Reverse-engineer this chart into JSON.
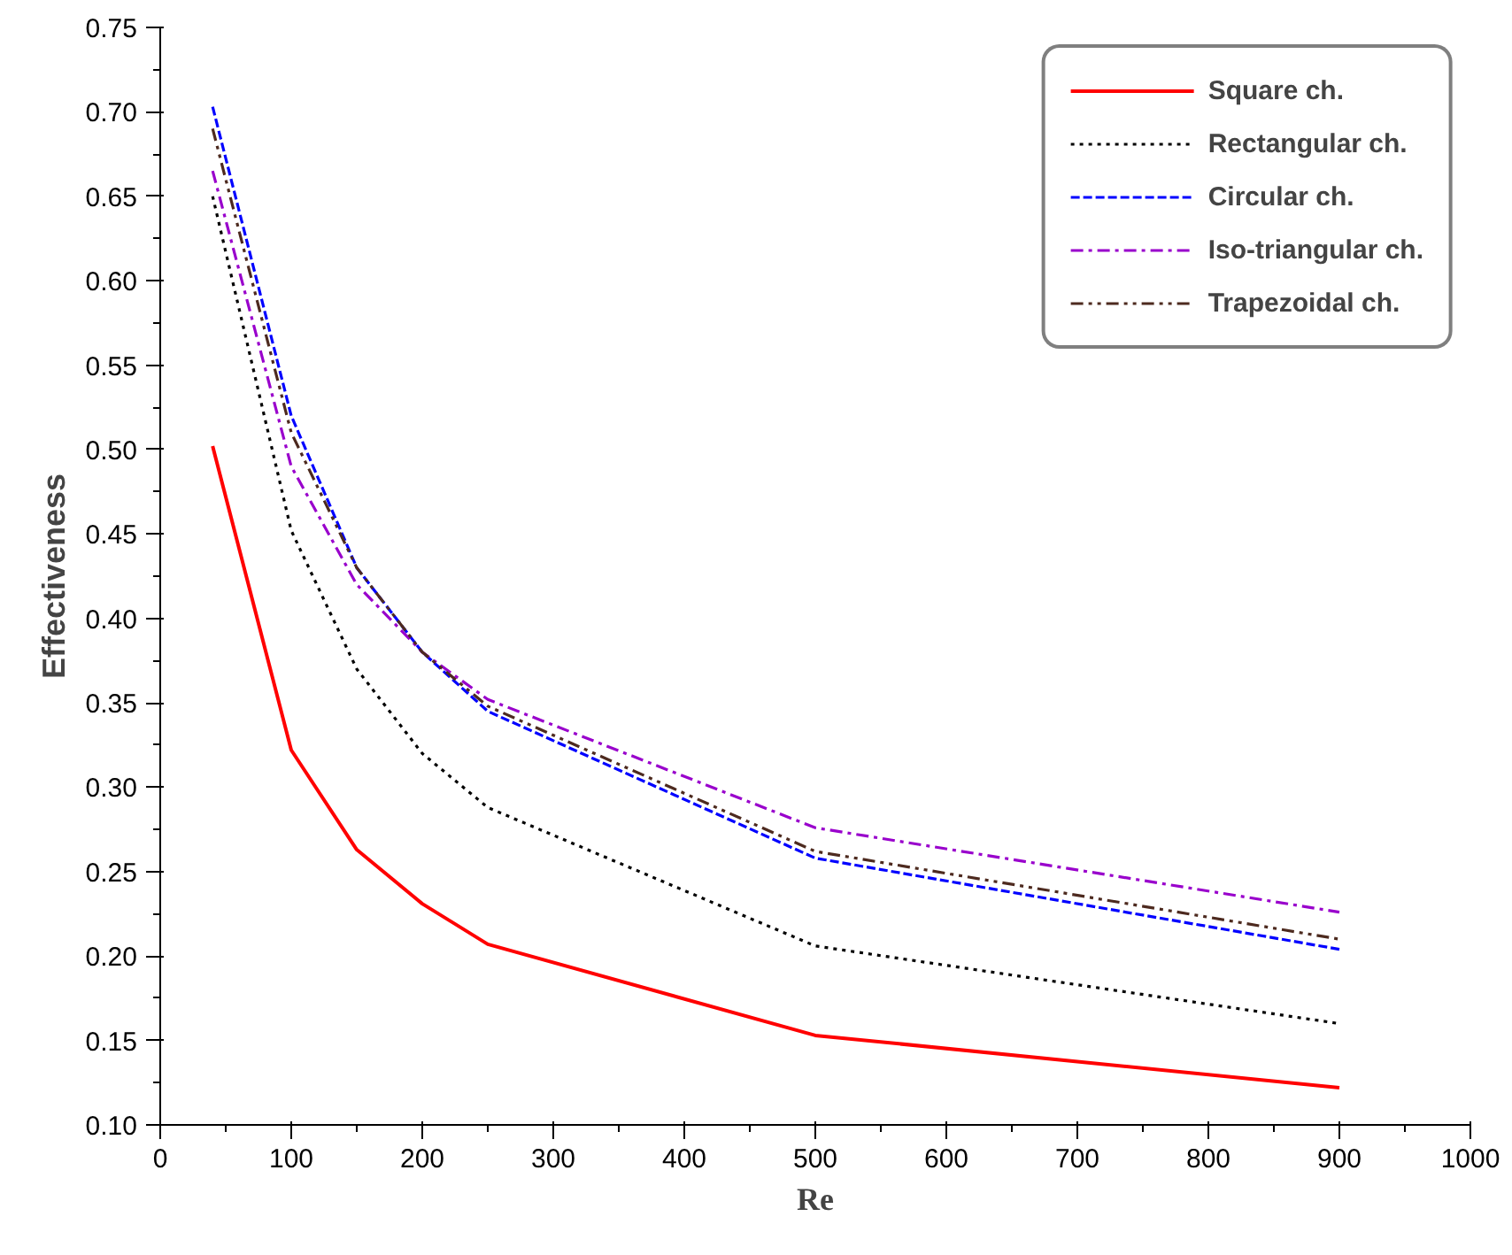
{
  "chart_data": {
    "type": "line",
    "xlabel": "Re",
    "ylabel": "Effectiveness",
    "x": [
      40,
      100,
      150,
      200,
      250,
      500,
      900
    ],
    "series": [
      {
        "name": "Square ch.",
        "color": "#ff0000",
        "line_style": "solid",
        "values": [
          0.502,
          0.322,
          0.263,
          0.231,
          0.207,
          0.153,
          0.122
        ]
      },
      {
        "name": "Rectangular ch.",
        "color": "#000000",
        "line_style": "dotted",
        "values": [
          0.65,
          0.452,
          0.37,
          0.32,
          0.288,
          0.206,
          0.16
        ]
      },
      {
        "name": "Circular ch.",
        "color": "#0000ff",
        "line_style": "dashed",
        "values": [
          0.703,
          0.52,
          0.43,
          0.38,
          0.345,
          0.258,
          0.204
        ]
      },
      {
        "name": "Iso-triangular ch.",
        "color": "#9900cc",
        "line_style": "dashdot",
        "values": [
          0.665,
          0.49,
          0.42,
          0.38,
          0.352,
          0.276,
          0.226
        ]
      },
      {
        "name": "Trapezoidal ch.",
        "color": "#4d2a1f",
        "line_style": "dashdotdot",
        "values": [
          0.69,
          0.51,
          0.43,
          0.38,
          0.348,
          0.262,
          0.21
        ]
      }
    ],
    "xlim": [
      0,
      1000
    ],
    "xticks": [
      0,
      100,
      200,
      300,
      400,
      500,
      600,
      700,
      800,
      900,
      1000
    ],
    "ylim": [
      0.1,
      0.75
    ],
    "yticks": [
      {
        "value": 0.1,
        "label": "0.10"
      },
      {
        "value": 0.15,
        "label": "0.15"
      },
      {
        "value": 0.2,
        "label": "0.20"
      },
      {
        "value": 0.25,
        "label": "0.25"
      },
      {
        "value": 0.3,
        "label": "0.30"
      },
      {
        "value": 0.35,
        "label": "0.35"
      },
      {
        "value": 0.4,
        "label": "0.40"
      },
      {
        "value": 0.45,
        "label": "0.45"
      },
      {
        "value": 0.5,
        "label": "0.50"
      },
      {
        "value": 0.55,
        "label": "0.55"
      },
      {
        "value": 0.6,
        "label": "0.60"
      },
      {
        "value": 0.65,
        "label": "0.65"
      },
      {
        "value": 0.7,
        "label": "0.70"
      },
      {
        "value": 0.75,
        "label": "0.75"
      }
    ],
    "grid": false,
    "legend": "top right",
    "marker": "none"
  }
}
